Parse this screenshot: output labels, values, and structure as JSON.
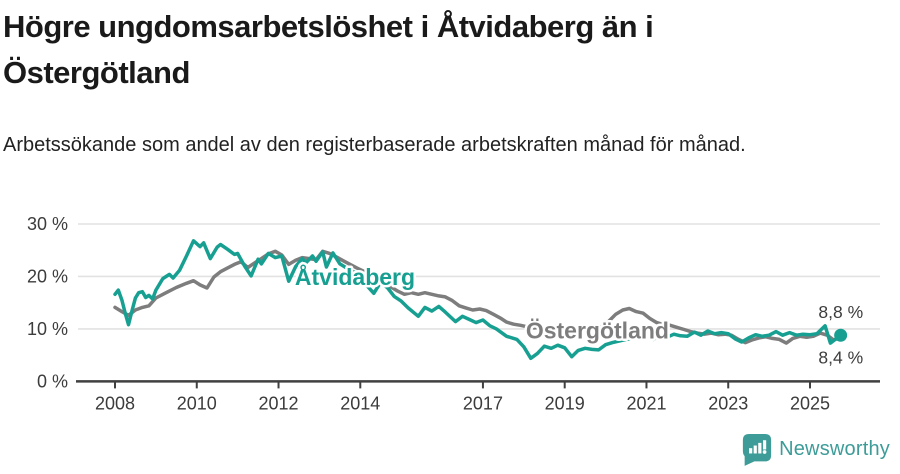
{
  "header": {
    "title": "Högre ungdomsarbetslöshet i Åtvidaberg än i Östergötland",
    "subtitle": "Arbetssökande som andel av den registerbaserade arbetskraften månad för månad."
  },
  "footer": {
    "brand": "Newsworthy"
  },
  "colors": {
    "primary": "#17a092",
    "secondary": "#7d7d7d",
    "title_text": "#1a1a1a",
    "axis_text": "#3c3c3c",
    "axis_line": "#404040",
    "grid_line": "#e2e2e2",
    "brand": "#3d9c98"
  },
  "chart_data": {
    "type": "line",
    "title": "Högre ungdomsarbetslöshet i Åtvidaberg än i Östergötland",
    "xlabel": "",
    "ylabel": "",
    "x_unit": "decimal_year",
    "ylim": [
      0,
      30
    ],
    "yticks": [
      0,
      10,
      20,
      30
    ],
    "ytick_suffix": " %",
    "xticks": [
      2008,
      2010,
      2012,
      2014,
      2017,
      2019,
      2021,
      2023,
      2025
    ],
    "grid": true,
    "legend_position": "inline-labels",
    "series": [
      {
        "name": "Östergötland",
        "color": "#7d7d7d",
        "end_dot": false,
        "points": [
          [
            2008.0,
            14.1
          ],
          [
            2008.17,
            13.3
          ],
          [
            2008.33,
            12.6
          ],
          [
            2008.5,
            13.6
          ],
          [
            2008.67,
            14.1
          ],
          [
            2008.83,
            14.4
          ],
          [
            2009.0,
            15.9
          ],
          [
            2009.25,
            16.9
          ],
          [
            2009.5,
            17.9
          ],
          [
            2009.75,
            18.7
          ],
          [
            2009.92,
            19.2
          ],
          [
            2010.08,
            18.4
          ],
          [
            2010.25,
            17.8
          ],
          [
            2010.42,
            19.9
          ],
          [
            2010.58,
            20.9
          ],
          [
            2010.75,
            21.6
          ],
          [
            2010.92,
            22.3
          ],
          [
            2011.08,
            22.8
          ],
          [
            2011.25,
            21.7
          ],
          [
            2011.42,
            22.6
          ],
          [
            2011.58,
            23.4
          ],
          [
            2011.75,
            24.3
          ],
          [
            2011.92,
            24.8
          ],
          [
            2012.08,
            24.1
          ],
          [
            2012.25,
            22.3
          ],
          [
            2012.42,
            23.1
          ],
          [
            2012.58,
            23.6
          ],
          [
            2012.75,
            23.4
          ],
          [
            2012.92,
            23.2
          ],
          [
            2013.08,
            24.8
          ],
          [
            2013.25,
            24.4
          ],
          [
            2013.42,
            23.7
          ],
          [
            2013.58,
            23.0
          ],
          [
            2013.75,
            22.3
          ],
          [
            2013.92,
            21.6
          ],
          [
            2014.08,
            21.0
          ],
          [
            2014.25,
            20.2
          ],
          [
            2014.42,
            19.6
          ],
          [
            2014.58,
            18.8
          ],
          [
            2014.75,
            18.0
          ],
          [
            2014.92,
            17.2
          ],
          [
            2015.08,
            16.6
          ],
          [
            2015.25,
            16.9
          ],
          [
            2015.42,
            16.6
          ],
          [
            2015.58,
            16.9
          ],
          [
            2015.75,
            16.6
          ],
          [
            2015.92,
            16.3
          ],
          [
            2016.08,
            16.1
          ],
          [
            2016.25,
            15.4
          ],
          [
            2016.42,
            14.4
          ],
          [
            2016.58,
            14.0
          ],
          [
            2016.75,
            13.6
          ],
          [
            2016.92,
            13.8
          ],
          [
            2017.08,
            13.5
          ],
          [
            2017.25,
            12.8
          ],
          [
            2017.42,
            12.1
          ],
          [
            2017.58,
            11.3
          ],
          [
            2017.75,
            10.9
          ],
          [
            2017.92,
            10.7
          ],
          [
            2018.08,
            10.4
          ],
          [
            2018.25,
            10.2
          ],
          [
            2018.42,
            10.3
          ],
          [
            2018.58,
            10.1
          ],
          [
            2018.75,
            10.2
          ],
          [
            2018.92,
            10.0
          ],
          [
            2019.08,
            9.9
          ],
          [
            2019.25,
            10.0
          ],
          [
            2019.42,
            9.8
          ],
          [
            2019.58,
            9.9
          ],
          [
            2019.75,
            10.1
          ],
          [
            2019.92,
            10.5
          ],
          [
            2020.08,
            11.5
          ],
          [
            2020.25,
            12.8
          ],
          [
            2020.42,
            13.6
          ],
          [
            2020.58,
            13.9
          ],
          [
            2020.75,
            13.3
          ],
          [
            2020.92,
            13.0
          ],
          [
            2021.08,
            12.0
          ],
          [
            2021.25,
            11.2
          ],
          [
            2021.42,
            10.8
          ],
          [
            2021.58,
            10.7
          ],
          [
            2021.75,
            10.3
          ],
          [
            2021.92,
            9.9
          ],
          [
            2022.08,
            9.5
          ],
          [
            2022.25,
            9.2
          ],
          [
            2022.42,
            9.0
          ],
          [
            2022.58,
            9.2
          ],
          [
            2022.75,
            8.9
          ],
          [
            2022.92,
            9.0
          ],
          [
            2023.08,
            8.8
          ],
          [
            2023.25,
            8.0
          ],
          [
            2023.42,
            7.4
          ],
          [
            2023.58,
            7.9
          ],
          [
            2023.75,
            8.3
          ],
          [
            2023.92,
            8.5
          ],
          [
            2024.08,
            8.2
          ],
          [
            2024.25,
            8.0
          ],
          [
            2024.42,
            7.3
          ],
          [
            2024.58,
            8.2
          ],
          [
            2024.75,
            8.6
          ],
          [
            2024.92,
            8.4
          ],
          [
            2025.08,
            8.6
          ],
          [
            2025.25,
            9.2
          ],
          [
            2025.42,
            8.8
          ],
          [
            2025.58,
            7.9
          ],
          [
            2025.75,
            8.4
          ]
        ]
      },
      {
        "name": "Åtvidaberg",
        "color": "#17a092",
        "end_dot": true,
        "points": [
          [
            2008.0,
            16.6
          ],
          [
            2008.08,
            17.4
          ],
          [
            2008.17,
            15.5
          ],
          [
            2008.25,
            13.0
          ],
          [
            2008.33,
            10.8
          ],
          [
            2008.42,
            13.6
          ],
          [
            2008.5,
            15.9
          ],
          [
            2008.58,
            16.9
          ],
          [
            2008.67,
            17.1
          ],
          [
            2008.75,
            16.0
          ],
          [
            2008.83,
            16.4
          ],
          [
            2008.92,
            15.7
          ],
          [
            2009.0,
            17.4
          ],
          [
            2009.17,
            19.6
          ],
          [
            2009.33,
            20.4
          ],
          [
            2009.42,
            19.7
          ],
          [
            2009.58,
            21.2
          ],
          [
            2009.75,
            23.9
          ],
          [
            2009.92,
            26.8
          ],
          [
            2010.08,
            25.7
          ],
          [
            2010.17,
            26.4
          ],
          [
            2010.25,
            24.9
          ],
          [
            2010.33,
            23.4
          ],
          [
            2010.5,
            25.6
          ],
          [
            2010.58,
            26.1
          ],
          [
            2010.75,
            25.2
          ],
          [
            2010.92,
            24.2
          ],
          [
            2011.0,
            24.4
          ],
          [
            2011.17,
            22.0
          ],
          [
            2011.33,
            20.1
          ],
          [
            2011.5,
            23.3
          ],
          [
            2011.58,
            22.4
          ],
          [
            2011.75,
            24.4
          ],
          [
            2011.92,
            23.6
          ],
          [
            2012.08,
            23.9
          ],
          [
            2012.25,
            19.1
          ],
          [
            2012.42,
            21.9
          ],
          [
            2012.58,
            23.4
          ],
          [
            2012.67,
            22.6
          ],
          [
            2012.83,
            23.9
          ],
          [
            2012.92,
            22.9
          ],
          [
            2013.08,
            24.7
          ],
          [
            2013.17,
            21.8
          ],
          [
            2013.33,
            24.5
          ],
          [
            2013.5,
            22.4
          ],
          [
            2013.67,
            21.6
          ],
          [
            2013.83,
            20.9
          ],
          [
            2014.0,
            20.4
          ],
          [
            2014.17,
            18.2
          ],
          [
            2014.33,
            16.8
          ],
          [
            2014.5,
            18.9
          ],
          [
            2014.67,
            17.8
          ],
          [
            2014.83,
            16.2
          ],
          [
            2015.0,
            15.3
          ],
          [
            2015.17,
            14.0
          ],
          [
            2015.42,
            12.4
          ],
          [
            2015.58,
            14.1
          ],
          [
            2015.75,
            13.4
          ],
          [
            2015.92,
            14.3
          ],
          [
            2016.08,
            13.2
          ],
          [
            2016.33,
            11.4
          ],
          [
            2016.5,
            12.4
          ],
          [
            2016.67,
            11.8
          ],
          [
            2016.83,
            11.2
          ],
          [
            2017.0,
            11.7
          ],
          [
            2017.17,
            10.6
          ],
          [
            2017.33,
            10.0
          ],
          [
            2017.58,
            8.6
          ],
          [
            2017.83,
            8.0
          ],
          [
            2018.0,
            6.6
          ],
          [
            2018.17,
            4.4
          ],
          [
            2018.33,
            5.3
          ],
          [
            2018.5,
            6.7
          ],
          [
            2018.67,
            6.3
          ],
          [
            2018.83,
            6.9
          ],
          [
            2019.0,
            6.4
          ],
          [
            2019.17,
            4.7
          ],
          [
            2019.33,
            5.9
          ],
          [
            2019.5,
            6.3
          ],
          [
            2019.67,
            6.1
          ],
          [
            2019.83,
            6.0
          ],
          [
            2020.0,
            7.0
          ],
          [
            2020.17,
            7.4
          ],
          [
            2020.33,
            7.7
          ],
          [
            2020.5,
            8.0
          ],
          [
            2020.67,
            8.2
          ],
          [
            2020.83,
            8.4
          ],
          [
            2021.0,
            8.6
          ],
          [
            2021.17,
            8.0
          ],
          [
            2021.33,
            8.9
          ],
          [
            2021.5,
            8.4
          ],
          [
            2021.67,
            9.0
          ],
          [
            2021.83,
            8.7
          ],
          [
            2022.0,
            8.6
          ],
          [
            2022.17,
            9.4
          ],
          [
            2022.33,
            8.8
          ],
          [
            2022.5,
            9.6
          ],
          [
            2022.67,
            9.1
          ],
          [
            2022.83,
            9.3
          ],
          [
            2023.0,
            9.1
          ],
          [
            2023.17,
            8.1
          ],
          [
            2023.33,
            7.5
          ],
          [
            2023.5,
            8.3
          ],
          [
            2023.67,
            8.9
          ],
          [
            2023.83,
            8.6
          ],
          [
            2024.0,
            8.8
          ],
          [
            2024.17,
            9.5
          ],
          [
            2024.33,
            8.8
          ],
          [
            2024.5,
            9.3
          ],
          [
            2024.67,
            8.8
          ],
          [
            2024.83,
            9.0
          ],
          [
            2025.0,
            8.9
          ],
          [
            2025.17,
            9.1
          ],
          [
            2025.37,
            10.6
          ],
          [
            2025.5,
            7.3
          ],
          [
            2025.75,
            8.8
          ]
        ]
      }
    ],
    "series_labels": [
      {
        "text": "Åtvidaberg",
        "x": 2013.87,
        "y": 19.9,
        "color": "#17a092"
      },
      {
        "text": "Östergötland",
        "x": 2019.8,
        "y": 9.7,
        "color": "#7d7d7d"
      }
    ],
    "annotations": [
      {
        "text": "8,8 %",
        "x": 2026.3,
        "y": 13.2,
        "anchor": "end"
      },
      {
        "text": "8,4 %",
        "x": 2026.3,
        "y": 4.6,
        "anchor": "end"
      }
    ]
  }
}
